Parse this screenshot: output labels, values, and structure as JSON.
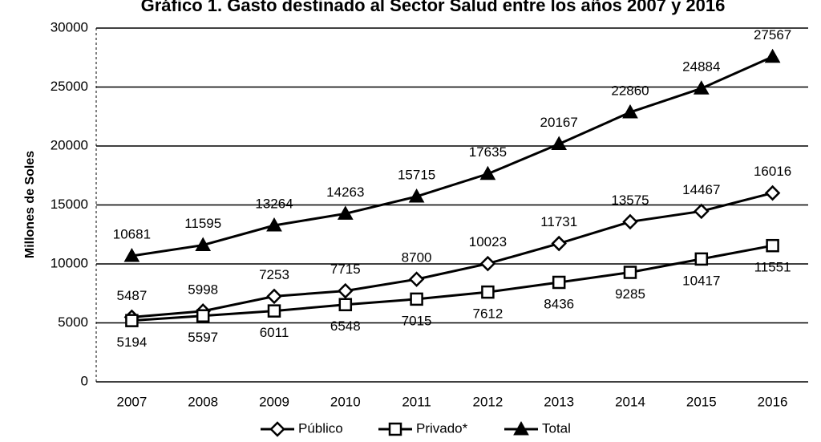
{
  "chart_data": {
    "type": "line",
    "title": "Gráfico 1. Gasto destinado al Sector Salud entre los años 2007 y 2016",
    "y_label": "Millones de Soles",
    "categories": [
      "2007",
      "2008",
      "2009",
      "2010",
      "2011",
      "2012",
      "2013",
      "2014",
      "2015",
      "2016"
    ],
    "series": [
      {
        "name": "Público",
        "color": "#000000",
        "marker": "diamond",
        "label_position": "above",
        "values": [
          5487,
          5998,
          7253,
          7715,
          8700,
          10023,
          11731,
          13575,
          14467,
          16016
        ]
      },
      {
        "name": "Privado*",
        "color": "#000000",
        "marker": "square",
        "label_position": "below",
        "values": [
          5194,
          5597,
          6011,
          6548,
          7015,
          7612,
          8436,
          9285,
          10417,
          11551
        ]
      },
      {
        "name": "Total",
        "color": "#000000",
        "marker": "triangle",
        "label_position": "above",
        "values": [
          10681,
          11595,
          13264,
          14263,
          15715,
          17635,
          20167,
          22860,
          24884,
          27567
        ]
      }
    ],
    "ylim": [
      0,
      30000
    ],
    "yticks": [
      0,
      5000,
      10000,
      15000,
      20000,
      25000,
      30000
    ],
    "grid": true,
    "legend": "bottom"
  }
}
